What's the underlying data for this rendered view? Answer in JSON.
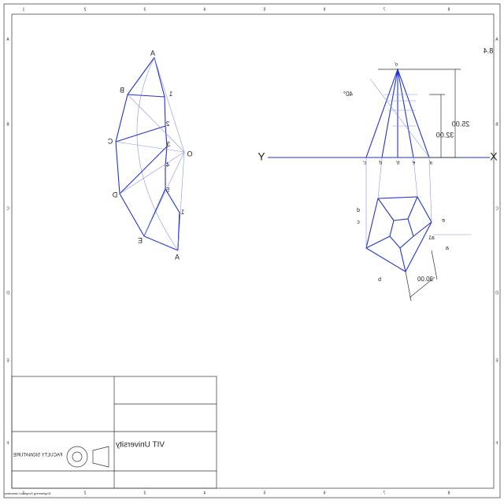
{
  "sheet": {
    "number": "8.4",
    "top_ruler": [
      "8",
      "7",
      "6",
      "5",
      "4",
      "3",
      "2",
      "1"
    ],
    "side_ruler": [
      "A",
      "B",
      "C",
      "D",
      "E",
      "F"
    ]
  },
  "development": {
    "outer_labels": [
      "A",
      "B",
      "C",
      "D",
      "E",
      "A"
    ],
    "inner_labels": [
      "1",
      "2",
      "3",
      "4",
      "5",
      "1"
    ],
    "apex": "O"
  },
  "projection": {
    "x_label": "X",
    "y_label": "Y",
    "angle": "40°",
    "dims": [
      "25.00",
      "32.00",
      "30.00"
    ],
    "front_labels": [
      "o'",
      "c'",
      "d'",
      "b'",
      "e'",
      "a'"
    ],
    "top_labels": [
      "d",
      "c",
      "b",
      "e",
      "a",
      "a1"
    ]
  },
  "title_block": {
    "university": "VIT University",
    "signature": "FACULTY SIGNATURE",
    "lab": "Engineering Graphics Laboratory"
  }
}
